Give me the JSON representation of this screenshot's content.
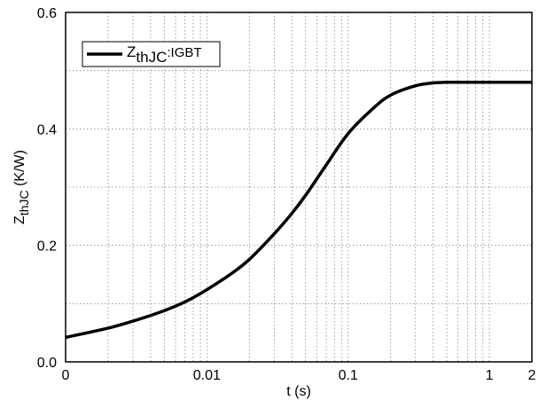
{
  "chart_data": {
    "type": "line",
    "xscale": "log",
    "xlim": [
      0.001,
      2
    ],
    "ylim": [
      0,
      0.6
    ],
    "xlabel": "t (s)",
    "ylabel": {
      "main": "Z",
      "sub": "thJC",
      "rest": " (K/W)"
    },
    "xticks": [
      {
        "value": 0.001,
        "label": "0"
      },
      {
        "value": 0.01,
        "label": "0.01"
      },
      {
        "value": 0.1,
        "label": "0.1"
      },
      {
        "value": 1,
        "label": "1"
      },
      {
        "value": 2,
        "label": "2"
      }
    ],
    "yticks": [
      {
        "value": 0,
        "label": "0.0"
      },
      {
        "value": 0.2,
        "label": "0.2"
      },
      {
        "value": 0.4,
        "label": "0.4"
      },
      {
        "value": 0.6,
        "label": "0.6"
      }
    ],
    "grid": true,
    "legend_position": "top-left",
    "series": [
      {
        "name": {
          "main": "Z",
          "sub": "thJC",
          "rest": ":IGBT"
        },
        "color": "#000000",
        "x": [
          0.001,
          0.002,
          0.003,
          0.005,
          0.007,
          0.01,
          0.015,
          0.02,
          0.03,
          0.04,
          0.05,
          0.07,
          0.1,
          0.15,
          0.2,
          0.3,
          0.4,
          0.5,
          0.7,
          1,
          1.5,
          2
        ],
        "y": [
          0.042,
          0.058,
          0.07,
          0.088,
          0.103,
          0.124,
          0.152,
          0.176,
          0.22,
          0.255,
          0.286,
          0.338,
          0.392,
          0.435,
          0.458,
          0.474,
          0.479,
          0.48,
          0.48,
          0.48,
          0.48,
          0.48
        ]
      }
    ]
  }
}
